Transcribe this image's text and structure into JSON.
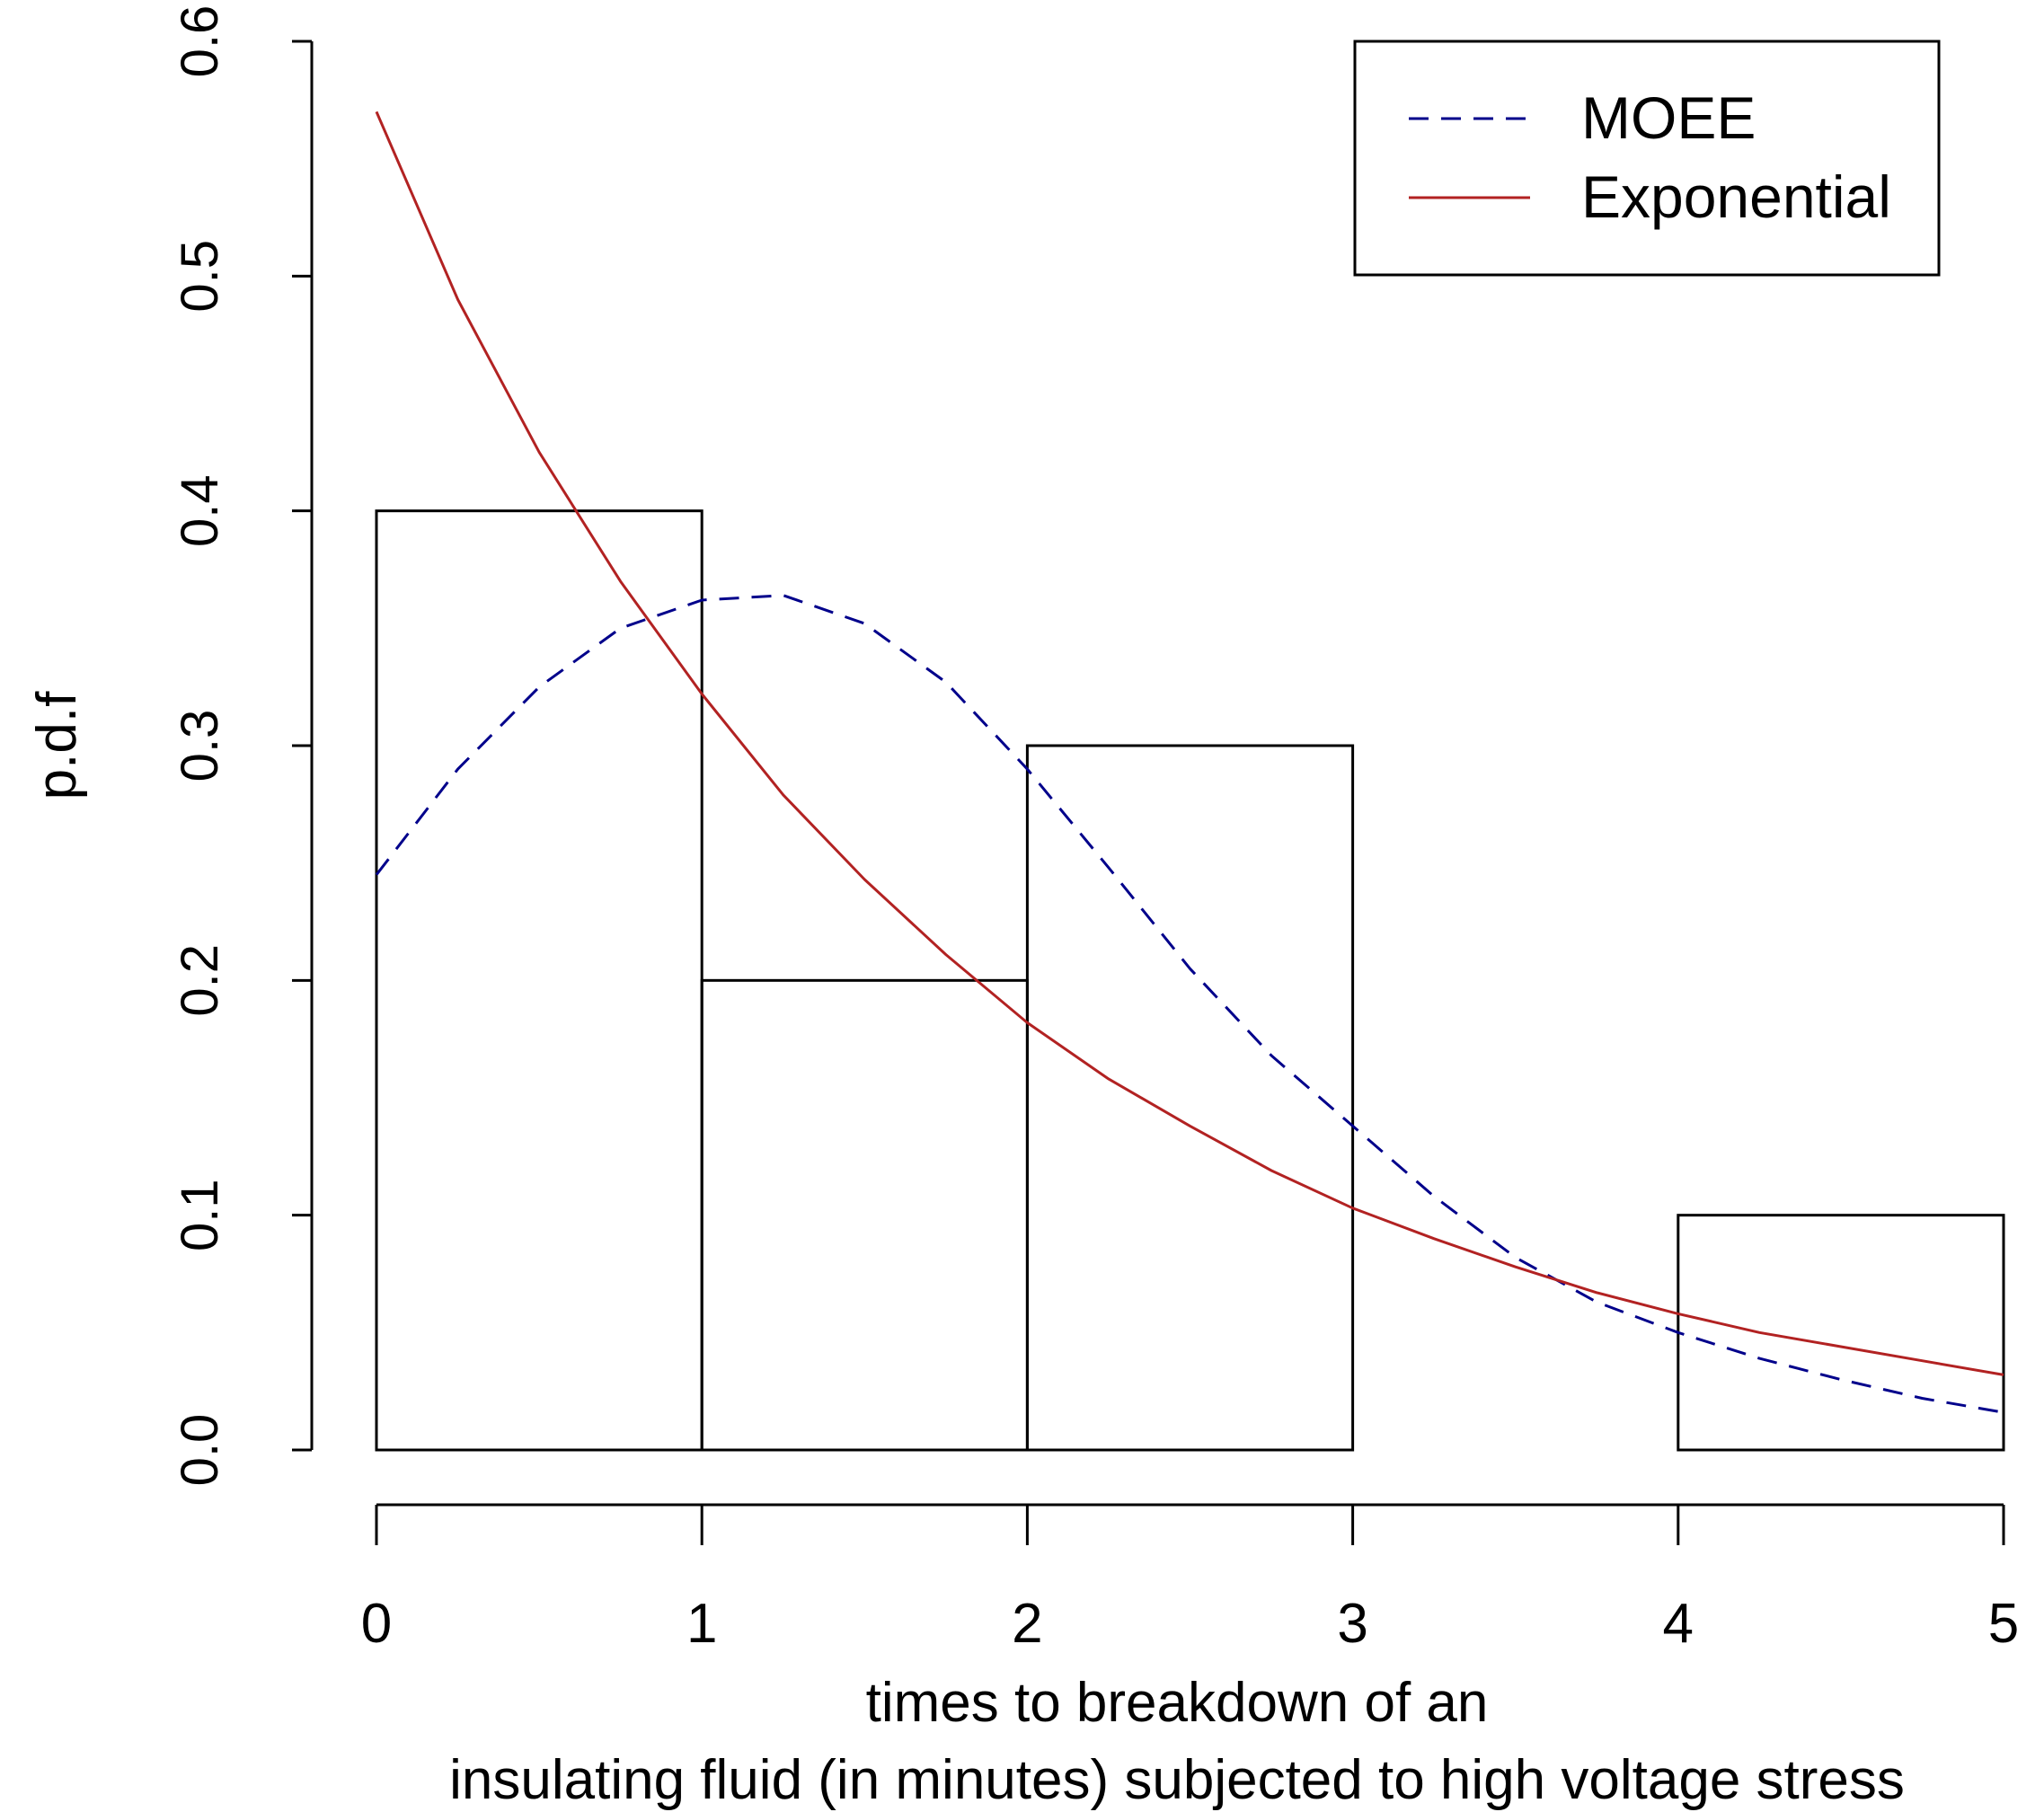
{
  "chart_data": {
    "type": "bar",
    "xlabel_lines": [
      "times to breakdown of an",
      "insulating fluid (in minutes) subjected to high voltage stress"
    ],
    "ylabel": "p.d.f",
    "xlim": [
      0,
      5
    ],
    "ylim": [
      0,
      0.6
    ],
    "x_ticks": [
      0,
      1,
      2,
      3,
      4,
      5
    ],
    "y_ticks": [
      0,
      0.1,
      0.2,
      0.3,
      0.4,
      0.5,
      0.6
    ],
    "x_tick_labels": [
      "0",
      "1",
      "2",
      "3",
      "4",
      "5"
    ],
    "y_tick_labels": [
      "0.0",
      "0.1",
      "0.2",
      "0.3",
      "0.4",
      "0.5",
      "0.6"
    ],
    "histogram": {
      "bins": [
        [
          0,
          1
        ],
        [
          1,
          2
        ],
        [
          2,
          3
        ],
        [
          3,
          4
        ],
        [
          4,
          5
        ]
      ],
      "density": [
        0.4,
        0.2,
        0.3,
        0.0,
        0.1
      ]
    },
    "series": [
      {
        "name": "MOEE",
        "type": "line",
        "style": "dashed",
        "color": "#00008b",
        "x": [
          0,
          0.25,
          0.5,
          0.75,
          1.0,
          1.25,
          1.5,
          1.75,
          2.0,
          2.25,
          2.5,
          2.75,
          3.0,
          3.25,
          3.5,
          3.75,
          4.0,
          4.25,
          4.5,
          4.75,
          5.0
        ],
        "y": [
          0.245,
          0.29,
          0.325,
          0.35,
          0.362,
          0.364,
          0.352,
          0.327,
          0.29,
          0.248,
          0.205,
          0.168,
          0.138,
          0.108,
          0.082,
          0.063,
          0.05,
          0.039,
          0.03,
          0.022,
          0.016
        ]
      },
      {
        "name": "Exponential",
        "type": "line",
        "style": "solid",
        "color": "#b22222",
        "x": [
          0,
          0.25,
          0.5,
          0.75,
          1.0,
          1.25,
          1.5,
          1.75,
          2.0,
          2.25,
          2.5,
          2.75,
          3.0,
          3.25,
          3.5,
          3.75,
          4.0,
          4.25,
          4.5,
          4.75,
          5.0
        ],
        "y": [
          0.57,
          0.49,
          0.425,
          0.37,
          0.322,
          0.279,
          0.243,
          0.211,
          0.182,
          0.158,
          0.138,
          0.119,
          0.103,
          0.09,
          0.078,
          0.067,
          0.058,
          0.05,
          0.044,
          0.038,
          0.032
        ]
      }
    ],
    "legend": {
      "placement": "top-right",
      "entries": [
        {
          "label": "MOEE",
          "style": "dashed",
          "color": "#00008b"
        },
        {
          "label": "Exponential",
          "style": "solid",
          "color": "#b22222"
        }
      ]
    },
    "grid": false
  }
}
